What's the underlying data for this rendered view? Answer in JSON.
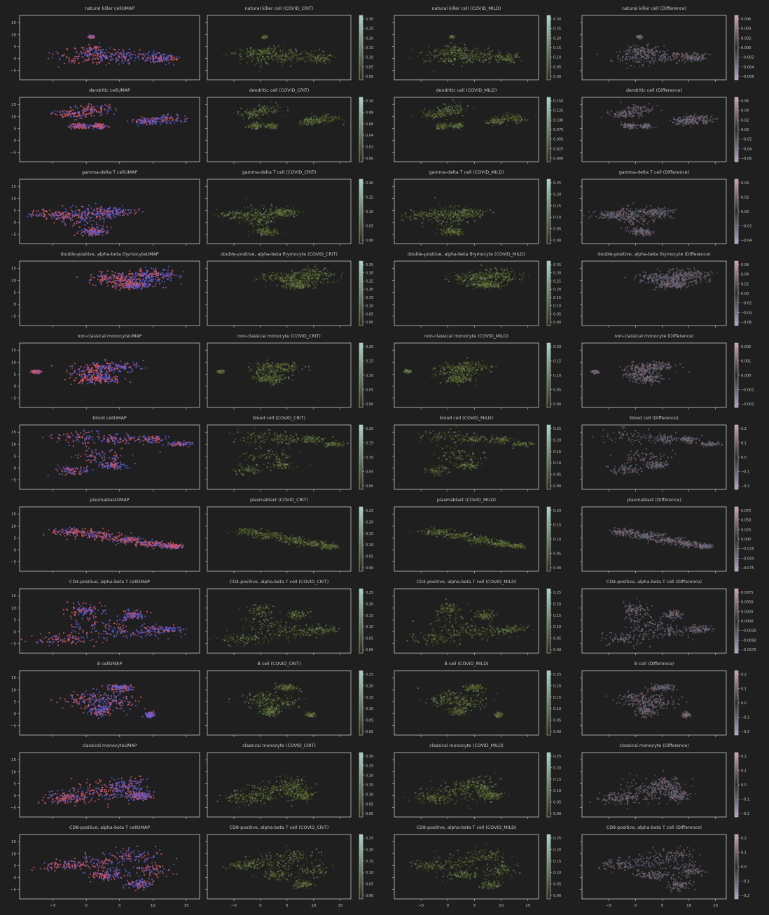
{
  "figure": {
    "background": "#1f1f1f",
    "axis_color": "#c8c8c8",
    "umap_colors": [
      "#d9565c",
      "#5a5ad6"
    ],
    "density_gradient": [
      "#262b12",
      "#a8d8c0"
    ],
    "difference_gradient": [
      "#b9a3cc",
      "#2b2b2b",
      "#d3a4ad"
    ]
  },
  "umap_axes": {
    "x_ticks": [
      "−5",
      "0",
      "5",
      "10",
      "15"
    ],
    "y_ticks": [
      "15",
      "10",
      "5",
      "0",
      "−5"
    ],
    "xlim": [
      -10,
      17
    ],
    "ylim": [
      -9,
      18
    ]
  },
  "chart_data": [
    {
      "type": "scatter",
      "cell_type": "natural killer cell",
      "titles": [
        "natural killer cellUMAP",
        "natural killer cell (COVID_CRIT)",
        "natural killer cell (COVID_MILD)",
        "natural killer cell (Difference)"
      ],
      "crit_colorbar": [
        "0.30",
        "0.25",
        "0.20",
        "0.15",
        "0.10",
        "0.05",
        "0.00"
      ],
      "mild_colorbar": [
        "0.30",
        "0.25",
        "0.20",
        "0.15",
        "0.10",
        "0.05",
        "0.00"
      ],
      "diff_colorbar": [
        "0.006",
        "0.004",
        "0.002",
        "0.000",
        "−0.002",
        "−0.004",
        "−0.006"
      ],
      "blobs": [
        {
          "x": 1,
          "y": 0,
          "rx": 6,
          "ry": 3.5
        },
        {
          "x": 6,
          "y": 1,
          "rx": 5,
          "ry": 2.5
        },
        {
          "x": 11,
          "y": 0,
          "rx": 2.5,
          "ry": 2
        },
        {
          "x": 1,
          "y": 3,
          "rx": 4,
          "ry": 2.5
        },
        {
          "x": 0.8,
          "y": 9,
          "rx": 0.4,
          "ry": 0.5
        }
      ],
      "split_x": 2
    },
    {
      "type": "scatter",
      "cell_type": "dendritic cell",
      "titles": [
        "dendritic cellUMAP",
        "dendritic cell (COVID_CRIT)",
        "dendritic cell (COVID_MILD)",
        "dendritic cell (Difference)"
      ],
      "crit_colorbar": [
        "0.10",
        "0.08",
        "0.06",
        "0.04",
        "0.02",
        "0.00"
      ],
      "mild_colorbar": [
        "0.150",
        "0.125",
        "0.100",
        "0.075",
        "0.050",
        "0.025",
        "0.000"
      ],
      "diff_colorbar": [
        "0.06",
        "0.04",
        "0.02",
        "0.00",
        "−0.02",
        "−0.04",
        "−0.06"
      ],
      "blobs": [
        {
          "x": -2,
          "y": 11,
          "rx": 3,
          "ry": 2
        },
        {
          "x": 1,
          "y": 13,
          "rx": 3,
          "ry": 2.5
        },
        {
          "x": -1,
          "y": 6,
          "rx": 1.5,
          "ry": 1.2
        },
        {
          "x": 2,
          "y": 6,
          "rx": 1,
          "ry": 1
        },
        {
          "x": 9,
          "y": 8,
          "rx": 2,
          "ry": 1.5
        },
        {
          "x": 12,
          "y": 9,
          "rx": 3,
          "ry": 2
        }
      ],
      "split_x": 3
    },
    {
      "type": "scatter",
      "cell_type": "gamma-delta T cell",
      "titles": [
        "gamma-delta T cellUMAP",
        "gamma-delta T cell (COVID_CRIT)",
        "gamma-delta T cell (COVID_MILD)",
        "gamma-delta T cell (Difference)"
      ],
      "crit_colorbar": [
        "0.20",
        "0.15",
        "0.10",
        "0.05",
        "0.00"
      ],
      "mild_colorbar": [
        "0.25",
        "0.20",
        "0.15",
        "0.10",
        "0.05",
        "0.00"
      ],
      "diff_colorbar": [
        "0.04",
        "0.02",
        "0.00",
        "−0.02",
        "−0.04"
      ],
      "blobs": [
        {
          "x": -4,
          "y": 3,
          "rx": 5,
          "ry": 2
        },
        {
          "x": 0,
          "y": 2,
          "rx": 3.5,
          "ry": 5
        },
        {
          "x": 4,
          "y": 4,
          "rx": 3,
          "ry": 2
        },
        {
          "x": 1,
          "y": -4,
          "rx": 2,
          "ry": 1.5
        }
      ],
      "split_x": -1
    },
    {
      "type": "scatter",
      "cell_type": "double-positive, alpha-beta thymocyte",
      "titles": [
        "double-positive, alpha-beta thymocyteUMAP",
        "double-positive, alpha-beta thymocyte (COVID_CRIT)",
        "double-positive, alpha-beta thymocyte (COVID_MILD)",
        "double-positive, alpha-beta thymocyte (Difference)"
      ],
      "crit_colorbar": [
        "0.35",
        "0.30",
        "0.25",
        "0.20",
        "0.15",
        "0.10",
        "0.05",
        "0.00"
      ],
      "mild_colorbar": [
        "0.35",
        "0.30",
        "0.25",
        "0.20",
        "0.15",
        "0.10",
        "0.05",
        "0.00"
      ],
      "diff_colorbar": [
        "0.06",
        "0.04",
        "0.02",
        "0.00",
        "−0.02",
        "−0.04",
        "−0.06"
      ],
      "blobs": [
        {
          "x": 5,
          "y": 11,
          "rx": 5,
          "ry": 2.5
        },
        {
          "x": 10,
          "y": 12,
          "rx": 4,
          "ry": 3
        },
        {
          "x": 7,
          "y": 8,
          "rx": 3,
          "ry": 1.5
        }
      ],
      "split_x": 7
    },
    {
      "type": "scatter",
      "cell_type": "non-classical monocyte",
      "titles": [
        "non-classical monocyteUMAP",
        "non-classical monocyte (COVID_CRIT)",
        "non-classical monocyte (COVID_MILD)",
        "non-classical monocyte (Difference)"
      ],
      "crit_colorbar": [
        "0.20",
        "0.15",
        "0.10",
        "0.05",
        "0.00"
      ],
      "mild_colorbar": [
        "0.20",
        "0.15",
        "0.10",
        "0.05",
        "0.00"
      ],
      "diff_colorbar": [
        "0.002",
        "0.001",
        "0.000",
        "−0.001",
        "−0.002"
      ],
      "blobs": [
        {
          "x": 1,
          "y": 6,
          "rx": 3.5,
          "ry": 3.5
        },
        {
          "x": 4,
          "y": 8,
          "rx": 4,
          "ry": 2
        },
        {
          "x": 2,
          "y": 3,
          "rx": 3,
          "ry": 2
        },
        {
          "x": -7.5,
          "y": 6,
          "rx": 0.6,
          "ry": 0.6
        }
      ],
      "split_x": 2
    },
    {
      "type": "scatter",
      "cell_type": "blood cell",
      "titles": [
        "blood cellUMAP",
        "blood cell (COVID_CRIT)",
        "blood cell (COVID_MILD)",
        "blood cell (Difference)"
      ],
      "crit_colorbar": [
        "0.20",
        "0.15",
        "0.10",
        "0.05",
        "0.00"
      ],
      "mild_colorbar": [
        "0.25",
        "0.20",
        "0.15",
        "0.10",
        "0.05",
        "0.00"
      ],
      "diff_colorbar": [
        "0.2",
        "0.1",
        "0.0",
        "−0.1",
        "−0.2"
      ],
      "blobs": [
        {
          "x": -1,
          "y": 13,
          "rx": 5,
          "ry": 3
        },
        {
          "x": 5,
          "y": 12,
          "rx": 3,
          "ry": 2
        },
        {
          "x": 2,
          "y": 5,
          "rx": 5,
          "ry": 3
        },
        {
          "x": -2,
          "y": -1,
          "rx": 3,
          "ry": 2
        },
        {
          "x": 10,
          "y": 12,
          "rx": 2,
          "ry": 1.5
        },
        {
          "x": 14,
          "y": 10,
          "rx": 2,
          "ry": 1
        },
        {
          "x": 4,
          "y": 1,
          "rx": 2,
          "ry": 1.5
        }
      ],
      "split_x": 0
    },
    {
      "type": "scatter",
      "cell_type": "plasmablast",
      "titles": [
        "plasmablastUMAP",
        "plasmablast (COVID_CRIT)",
        "plasmablast (COVID_MILD)",
        "plasmablast (Difference)"
      ],
      "crit_colorbar": [
        "0.25",
        "0.20",
        "0.15",
        "0.10",
        "0.05",
        "0.00"
      ],
      "mild_colorbar": [
        "0.20",
        "0.15",
        "0.10",
        "0.05",
        "0.00"
      ],
      "diff_colorbar": [
        "0.075",
        "0.050",
        "0.025",
        "0.000",
        "−0.025",
        "−0.050",
        "−0.075"
      ],
      "blobs": [
        {
          "x": -2,
          "y": 7.5,
          "rx": 3,
          "ry": 1.5
        },
        {
          "x": 2,
          "y": 6,
          "rx": 3,
          "ry": 1.5
        },
        {
          "x": 6,
          "y": 4,
          "rx": 3,
          "ry": 1.5
        },
        {
          "x": 10,
          "y": 2.5,
          "rx": 2.5,
          "ry": 1.2
        },
        {
          "x": 13,
          "y": 1.5,
          "rx": 1.5,
          "ry": 1
        }
      ],
      "split_x": 100
    },
    {
      "type": "scatter",
      "cell_type": "CD4-positive, alpha-beta T cell",
      "titles": [
        "CD4-positive, alpha-beta T cellUMAP",
        "CD4-positive, alpha-beta T cell (COVID_CRIT)",
        "CD4-positive, alpha-beta T cell (COVID_MILD)",
        "CD4-positive, alpha-beta T cell (Difference)"
      ],
      "crit_colorbar": [
        "0.25",
        "0.20",
        "0.15",
        "0.10",
        "0.05",
        "0.00"
      ],
      "mild_colorbar": [
        "0.25",
        "0.20",
        "0.15",
        "0.10",
        "0.05",
        "0.00"
      ],
      "diff_colorbar": [
        "0.0075",
        "0.0050",
        "0.0025",
        "0.0000",
        "−0.0025",
        "−0.0050",
        "−0.0075"
      ],
      "blobs": [
        {
          "x": -3,
          "y": -3,
          "rx": 5,
          "ry": 2.5
        },
        {
          "x": 2,
          "y": 2,
          "rx": 5,
          "ry": 5
        },
        {
          "x": 7,
          "y": 0,
          "rx": 6,
          "ry": 3
        },
        {
          "x": 12,
          "y": 1,
          "rx": 3,
          "ry": 1.5
        },
        {
          "x": 7,
          "y": 7,
          "rx": 2,
          "ry": 2
        },
        {
          "x": 0,
          "y": 9,
          "rx": 2.5,
          "ry": 3
        }
      ],
      "split_x": -1
    },
    {
      "type": "scatter",
      "cell_type": "B cell",
      "titles": [
        "B cellUMAP",
        "B cell (COVID_CRIT)",
        "B cell (COVID_MILD)",
        "B cell (Difference)"
      ],
      "crit_colorbar": [
        "0.25",
        "0.20",
        "0.15",
        "0.10",
        "0.05",
        "0.00"
      ],
      "mild_colorbar": [
        "0.25",
        "0.20",
        "0.15",
        "0.10",
        "0.05",
        "0.00"
      ],
      "diff_colorbar": [
        "0.2",
        "0.1",
        "0.0",
        "−0.1",
        "−0.2"
      ],
      "blobs": [
        {
          "x": 0,
          "y": 6,
          "rx": 4,
          "ry": 3
        },
        {
          "x": 4,
          "y": 5,
          "rx": 4,
          "ry": 3.5
        },
        {
          "x": 2,
          "y": 1,
          "rx": 2,
          "ry": 2
        },
        {
          "x": 5,
          "y": 11,
          "rx": 2,
          "ry": 1.5
        },
        {
          "x": 9.5,
          "y": -0.5,
          "rx": 0.7,
          "ry": 1
        }
      ],
      "split_x": 0
    },
    {
      "type": "scatter",
      "cell_type": "classical monocyte",
      "titles": [
        "classical monocyteUMAP",
        "classical monocyte (COVID_CRIT)",
        "classical monocyte (COVID_MILD)",
        "classical monocyte (Difference)"
      ],
      "crit_colorbar": [
        "0.30",
        "0.25",
        "0.20",
        "0.15",
        "0.10",
        "0.05",
        "0.00"
      ],
      "mild_colorbar": [
        "0.25",
        "0.20",
        "0.15",
        "0.10",
        "0.05",
        "0.00"
      ],
      "diff_colorbar": [
        "0.2",
        "0.1",
        "0.0",
        "−0.1",
        "−0.2"
      ],
      "blobs": [
        {
          "x": -3,
          "y": -1,
          "rx": 4,
          "ry": 2.5
        },
        {
          "x": 2,
          "y": 2,
          "rx": 5,
          "ry": 5
        },
        {
          "x": 6,
          "y": 4,
          "rx": 3,
          "ry": 4
        },
        {
          "x": 8,
          "y": 0,
          "rx": 2,
          "ry": 2
        }
      ],
      "split_x": 3
    },
    {
      "type": "scatter",
      "cell_type": "CD8-positive, alpha-beta T cell",
      "titles": [
        "CD8-positive, alpha-beta T cellUMAP",
        "CD8-positive, alpha-beta T cell (COVID_CRIT)",
        "CD8-positive, alpha-beta T cell (COVID_MILD)",
        "CD8-positive, alpha-beta T cell (Difference)"
      ],
      "crit_colorbar": [
        "0.25",
        "0.20",
        "0.15",
        "0.10",
        "0.05",
        "0.00"
      ],
      "mild_colorbar": [
        "0.25",
        "0.20",
        "0.15",
        "0.10",
        "0.05",
        "0.00"
      ],
      "diff_colorbar": [
        "0.2",
        "0.1",
        "0.0",
        "−0.1",
        "−0.2"
      ],
      "blobs": [
        {
          "x": -3,
          "y": 5,
          "rx": 4,
          "ry": 2
        },
        {
          "x": 2,
          "y": 6,
          "rx": 5,
          "ry": 4
        },
        {
          "x": 7,
          "y": 9,
          "rx": 4,
          "ry": 3
        },
        {
          "x": 10,
          "y": 3,
          "rx": 3,
          "ry": 3
        },
        {
          "x": 8,
          "y": -3,
          "rx": 2,
          "ry": 2
        },
        {
          "x": 3,
          "y": 1,
          "rx": 3,
          "ry": 2
        }
      ],
      "split_x": 3
    }
  ]
}
